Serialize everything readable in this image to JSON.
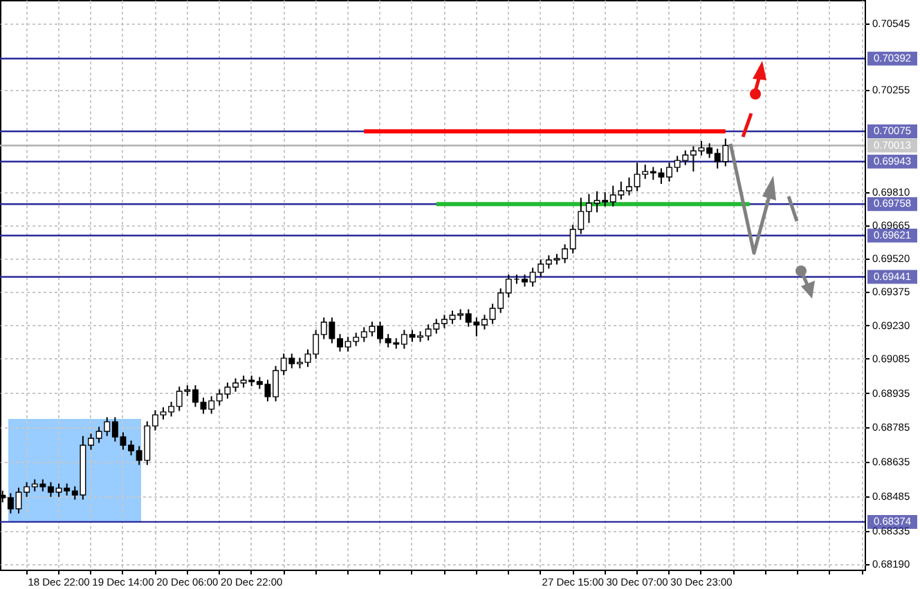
{
  "chart_data": {
    "type": "candlestick",
    "categories": [
      null,
      null,
      null,
      null,
      null,
      null,
      null,
      "18 Dec 22:00",
      null,
      null,
      null,
      null,
      null,
      null,
      null,
      "19 Dec 14:00",
      null,
      null,
      null,
      null,
      null,
      null,
      null,
      "20 Dec 06:00",
      null,
      null,
      null,
      null,
      null,
      null,
      null,
      "20 Dec 22:00",
      null,
      null,
      null,
      null,
      null,
      null,
      null,
      null,
      null,
      null,
      null,
      null,
      null,
      null,
      null,
      null,
      null,
      null,
      null,
      null,
      null,
      null,
      null,
      null,
      null,
      null,
      null,
      null,
      null,
      null,
      null,
      null,
      null,
      null,
      null,
      null,
      null,
      null,
      null,
      "27 Dec 15:00",
      null,
      null,
      null,
      null,
      null,
      null,
      null,
      "30 Dec 07:00",
      null,
      null,
      null,
      null,
      null,
      null,
      null,
      "30 Dec 23:00",
      null,
      null,
      null,
      null,
      null,
      null,
      null,
      null,
      null,
      null,
      null,
      null,
      null,
      null,
      null,
      null,
      null,
      null,
      null,
      null
    ],
    "ohlc": [
      [
        0.6849,
        0.6851,
        0.68459,
        0.68479
      ],
      [
        0.68479,
        0.68499,
        0.68411,
        0.68431
      ],
      [
        0.68431,
        0.68523,
        0.68411,
        0.68503
      ],
      [
        0.68503,
        0.68547,
        0.68483,
        0.68527
      ],
      [
        0.68527,
        0.68559,
        0.68507,
        0.68539
      ],
      [
        0.68539,
        0.68559,
        0.68507,
        0.68527
      ],
      [
        0.68527,
        0.68547,
        0.68483,
        0.68503
      ],
      [
        0.68503,
        0.68541,
        0.68483,
        0.68521
      ],
      [
        0.68521,
        0.68541,
        0.68489,
        0.68509
      ],
      [
        0.68509,
        0.68529,
        0.68471,
        0.68491
      ],
      [
        0.68491,
        0.68748,
        0.68471,
        0.68708
      ],
      [
        0.68708,
        0.68758,
        0.68688,
        0.68738
      ],
      [
        0.68738,
        0.68788,
        0.68718,
        0.68768
      ],
      [
        0.68768,
        0.6883,
        0.68748,
        0.6881
      ],
      [
        0.6881,
        0.6883,
        0.68724,
        0.68744
      ],
      [
        0.68744,
        0.68764,
        0.68688,
        0.68708
      ],
      [
        0.68708,
        0.68728,
        0.68664,
        0.68684
      ],
      [
        0.68684,
        0.68704,
        0.68622,
        0.68642
      ],
      [
        0.68642,
        0.68812,
        0.68622,
        0.68792
      ],
      [
        0.68792,
        0.6886,
        0.68772,
        0.6884
      ],
      [
        0.6884,
        0.68873,
        0.6882,
        0.68853
      ],
      [
        0.68853,
        0.68897,
        0.68833,
        0.68877
      ],
      [
        0.68877,
        0.68963,
        0.68857,
        0.68943
      ],
      [
        0.68943,
        0.68969,
        0.68923,
        0.68949
      ],
      [
        0.68949,
        0.68969,
        0.68875,
        0.68895
      ],
      [
        0.68895,
        0.68915,
        0.68845,
        0.68865
      ],
      [
        0.68865,
        0.68921,
        0.68845,
        0.68901
      ],
      [
        0.68901,
        0.68951,
        0.68881,
        0.68931
      ],
      [
        0.68931,
        0.68981,
        0.68911,
        0.68961
      ],
      [
        0.68961,
        0.68999,
        0.68941,
        0.68979
      ],
      [
        0.68979,
        0.69011,
        0.68959,
        0.68991
      ],
      [
        0.68991,
        0.69011,
        0.68965,
        0.68985
      ],
      [
        0.68985,
        0.69005,
        0.68953,
        0.68973
      ],
      [
        0.68973,
        0.68993,
        0.68899,
        0.68919
      ],
      [
        0.68919,
        0.69053,
        0.68899,
        0.69033
      ],
      [
        0.69033,
        0.69107,
        0.69013,
        0.69087
      ],
      [
        0.69087,
        0.69107,
        0.69043,
        0.69063
      ],
      [
        0.69063,
        0.69089,
        0.69043,
        0.69069
      ],
      [
        0.69069,
        0.69125,
        0.69049,
        0.69105
      ],
      [
        0.69105,
        0.6921,
        0.69085,
        0.6919
      ],
      [
        0.6919,
        0.69264,
        0.6917,
        0.69244
      ],
      [
        0.69244,
        0.69264,
        0.69152,
        0.69172
      ],
      [
        0.69172,
        0.69192,
        0.69116,
        0.69136
      ],
      [
        0.69136,
        0.6918,
        0.69116,
        0.6916
      ],
      [
        0.6916,
        0.69198,
        0.6914,
        0.69178
      ],
      [
        0.69178,
        0.69222,
        0.69158,
        0.69202
      ],
      [
        0.69202,
        0.69246,
        0.69182,
        0.69226
      ],
      [
        0.69226,
        0.69246,
        0.69152,
        0.69172
      ],
      [
        0.69172,
        0.69192,
        0.69134,
        0.69154
      ],
      [
        0.69154,
        0.69174,
        0.69128,
        0.69148
      ],
      [
        0.69148,
        0.6921,
        0.69128,
        0.6919
      ],
      [
        0.6919,
        0.6921,
        0.69158,
        0.69178
      ],
      [
        0.69178,
        0.69204,
        0.69158,
        0.69184
      ],
      [
        0.69184,
        0.69234,
        0.69164,
        0.69214
      ],
      [
        0.69214,
        0.69258,
        0.69194,
        0.69238
      ],
      [
        0.69238,
        0.69276,
        0.69218,
        0.69256
      ],
      [
        0.69256,
        0.69294,
        0.69236,
        0.69274
      ],
      [
        0.69274,
        0.693,
        0.69254,
        0.6928
      ],
      [
        0.6928,
        0.693,
        0.69224,
        0.69244
      ],
      [
        0.69244,
        0.69264,
        0.69182,
        0.69232
      ],
      [
        0.69232,
        0.69276,
        0.69212,
        0.69256
      ],
      [
        0.69256,
        0.69324,
        0.69236,
        0.69304
      ],
      [
        0.69304,
        0.69391,
        0.69284,
        0.69371
      ],
      [
        0.69371,
        0.69451,
        0.69351,
        0.69431
      ],
      [
        0.69431,
        0.69451,
        0.69411,
        0.69431
      ],
      [
        0.69431,
        0.69451,
        0.69399,
        0.69419
      ],
      [
        0.69419,
        0.69481,
        0.69399,
        0.69461
      ],
      [
        0.69461,
        0.69517,
        0.69441,
        0.69497
      ],
      [
        0.69497,
        0.69535,
        0.69477,
        0.69515
      ],
      [
        0.69515,
        0.69541,
        0.69495,
        0.69521
      ],
      [
        0.69521,
        0.69583,
        0.69501,
        0.69563
      ],
      [
        0.69563,
        0.69668,
        0.69543,
        0.69648
      ],
      [
        0.69648,
        0.69786,
        0.69628,
        0.69726
      ],
      [
        0.69726,
        0.69802,
        0.69676,
        0.69762
      ],
      [
        0.69762,
        0.69814,
        0.69722,
        0.69774
      ],
      [
        0.69774,
        0.6981,
        0.69748,
        0.69768
      ],
      [
        0.69768,
        0.69838,
        0.69748,
        0.69798
      ],
      [
        0.69798,
        0.69856,
        0.69778,
        0.69816
      ],
      [
        0.69816,
        0.69874,
        0.69796,
        0.69834
      ],
      [
        0.69834,
        0.69938,
        0.69814,
        0.69888
      ],
      [
        0.69888,
        0.6993,
        0.69868,
        0.699
      ],
      [
        0.699,
        0.6992,
        0.69864,
        0.69894
      ],
      [
        0.69894,
        0.69914,
        0.69846,
        0.69876
      ],
      [
        0.69876,
        0.69938,
        0.69856,
        0.69918
      ],
      [
        0.69918,
        0.69968,
        0.69898,
        0.69948
      ],
      [
        0.69948,
        0.69992,
        0.69928,
        0.69972
      ],
      [
        0.69972,
        0.7001,
        0.699,
        0.6999
      ],
      [
        0.6999,
        0.70033,
        0.6997,
        0.70003
      ],
      [
        0.70003,
        0.70023,
        0.69959,
        0.69979
      ],
      [
        0.69979,
        0.69999,
        0.69913,
        0.69943
      ],
      [
        0.69943,
        0.70043,
        0.69923,
        0.70013
      ],
      null,
      null,
      null,
      null,
      null,
      null,
      null,
      null,
      null,
      null,
      null,
      null,
      null,
      null,
      null,
      null,
      null
    ],
    "series": [
      {
        "type": "line",
        "color": "#ff0000",
        "values": [
          null,
          null,
          null,
          null,
          null,
          null,
          null,
          null,
          null,
          null,
          null,
          null,
          null,
          null,
          null,
          null,
          null,
          null,
          null,
          null,
          null,
          null,
          null,
          null,
          null,
          null,
          null,
          null,
          null,
          null,
          null,
          null,
          null,
          null,
          null,
          null,
          null,
          null,
          null,
          null,
          null,
          null,
          null,
          null,
          null,
          0.70075,
          null,
          null,
          null,
          null,
          null,
          null,
          null,
          null,
          null,
          null,
          null,
          null,
          null,
          null,
          null,
          null,
          null,
          null,
          null,
          null,
          null,
          null,
          null,
          null,
          null,
          null,
          null,
          null,
          null,
          null,
          null,
          null,
          null,
          null,
          null,
          null,
          null,
          null,
          null,
          null,
          null,
          null,
          null,
          null,
          0.70075,
          null,
          null,
          null,
          null,
          null,
          null,
          null,
          null,
          null,
          null,
          null,
          null,
          null,
          null,
          null,
          null,
          null
        ]
      },
      {
        "type": "line",
        "color": "#22bb33",
        "values": [
          null,
          null,
          null,
          null,
          null,
          null,
          null,
          null,
          null,
          null,
          null,
          null,
          null,
          null,
          null,
          null,
          null,
          null,
          null,
          null,
          null,
          null,
          null,
          null,
          null,
          null,
          null,
          null,
          null,
          null,
          null,
          null,
          null,
          null,
          null,
          null,
          null,
          null,
          null,
          null,
          null,
          null,
          null,
          null,
          null,
          null,
          null,
          null,
          null,
          null,
          null,
          null,
          null,
          null,
          0.69758,
          null,
          null,
          null,
          null,
          null,
          null,
          null,
          null,
          null,
          null,
          null,
          null,
          null,
          null,
          null,
          null,
          null,
          null,
          null,
          null,
          null,
          null,
          null,
          null,
          null,
          null,
          null,
          null,
          null,
          null,
          null,
          null,
          null,
          null,
          null,
          null,
          null,
          null,
          0.69758,
          null,
          null,
          null,
          null,
          null,
          null,
          null,
          null,
          null,
          null,
          null,
          null,
          null,
          null
        ]
      }
    ],
    "ylim": [
      0.68166,
      0.70647
    ],
    "yticks": [
      0.70545,
      0.70255,
      {
        "value": 0.6981,
        "label": "0.69810"
      },
      0.69665,
      {
        "value": 0.6952,
        "label": "0.69520"
      },
      0.69375,
      {
        "value": 0.6923,
        "label": "0.69230"
      },
      0.69085,
      0.68935,
      0.68785,
      0.68635,
      0.68485,
      0.68335,
      {
        "value": 0.6819,
        "label": "0.68190"
      }
    ],
    "ref_lines": [
      {
        "axis": "y",
        "value": 0.70392,
        "label": "0.70392",
        "color": "#2a2a9c"
      },
      {
        "axis": "y",
        "value": 0.70075,
        "label": "0.70075",
        "color": "#2a2a9c"
      },
      {
        "axis": "y",
        "value": 0.70013,
        "label": "0.70013",
        "color": "#b0b0b0"
      },
      {
        "axis": "y",
        "value": 0.69943,
        "label": "0.69943",
        "color": "#2a2a9c"
      },
      {
        "axis": "y",
        "value": 0.69758,
        "label": "0.69758",
        "color": "#2a2a9c"
      },
      {
        "axis": "y",
        "value": 0.69621,
        "label": "0.69621",
        "color": "#2a2a9c"
      },
      {
        "axis": "y",
        "value": 0.69441,
        "label": "0.69441",
        "color": "#2a2a9c"
      },
      {
        "axis": "y",
        "value": 0.68374,
        "label": "0.68374",
        "color": "#2a2a9c"
      }
    ],
    "grid": true
  }
}
